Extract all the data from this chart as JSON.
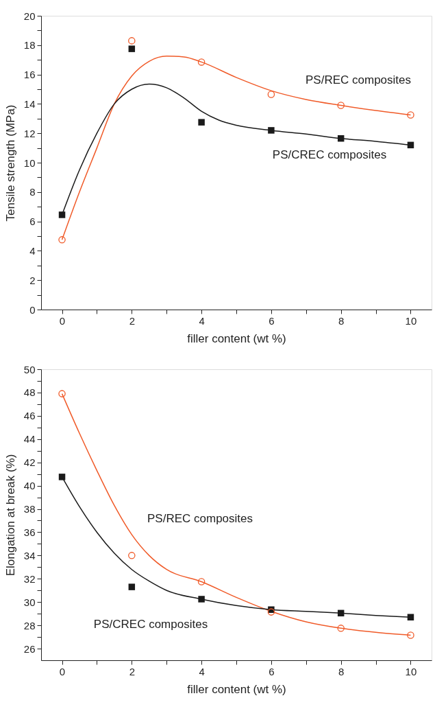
{
  "chart_data": [
    {
      "type": "scatter",
      "xlabel": "filler content (wt %)",
      "ylabel": "Tensile strength (MPa)",
      "xlim": [
        -0.6,
        10.6
      ],
      "ylim": [
        0,
        20
      ],
      "xticks": [
        0,
        {
          "value": 1,
          "label": null
        },
        2,
        {
          "value": 3,
          "label": null
        },
        4,
        {
          "value": 5,
          "label": null
        },
        6,
        {
          "value": 7,
          "label": null
        },
        8,
        {
          "value": 9,
          "label": null
        },
        10
      ],
      "yticks": [
        0,
        {
          "value": 1,
          "label": null
        },
        2,
        {
          "value": 3,
          "label": null
        },
        4,
        {
          "value": 5,
          "label": null
        },
        6,
        {
          "value": 7,
          "label": null
        },
        8,
        {
          "value": 9,
          "label": null
        },
        10,
        {
          "value": 11,
          "label": null
        },
        12,
        {
          "value": 13,
          "label": null
        },
        14,
        {
          "value": 15,
          "label": null
        },
        16,
        {
          "value": 17,
          "label": null
        },
        18,
        {
          "value": 19,
          "label": null
        },
        20
      ],
      "grid": false,
      "series": [
        {
          "type": "line",
          "color": "#f05a28",
          "x": [
            0,
            0.5,
            1,
            1.5,
            2,
            2.5,
            3,
            3.5,
            4,
            5,
            6,
            7,
            8,
            9,
            10
          ],
          "values": [
            4.75,
            8.0,
            11.0,
            14.0,
            15.9,
            16.9,
            17.25,
            17.2,
            16.85,
            15.8,
            14.9,
            14.3,
            13.9,
            13.55,
            13.25
          ]
        },
        {
          "type": "line",
          "color": "#1a1a1a",
          "x": [
            0,
            0.5,
            1,
            1.5,
            2,
            2.5,
            3,
            3.5,
            4,
            4.5,
            5,
            6,
            7,
            8,
            9,
            10
          ],
          "values": [
            6.45,
            9.5,
            12.0,
            14.0,
            15.0,
            15.35,
            15.1,
            14.4,
            13.5,
            12.9,
            12.55,
            12.2,
            11.95,
            11.65,
            11.45,
            11.2
          ]
        },
        {
          "marker": "circle",
          "color": "#f05a28",
          "x": [
            0,
            2,
            4,
            6,
            8,
            10
          ],
          "values": [
            4.75,
            18.3,
            16.85,
            14.65,
            13.9,
            13.25
          ]
        },
        {
          "marker": "square",
          "color": "#1a1a1a",
          "x": [
            0,
            2,
            4,
            6,
            8,
            10
          ],
          "values": [
            6.45,
            17.75,
            12.75,
            12.2,
            11.65,
            11.2
          ]
        }
      ],
      "annotations": [
        "PS/REC composites",
        "PS/CREC composites"
      ]
    },
    {
      "type": "scatter",
      "xlabel": "filler content (wt %)",
      "ylabel": "Elongation at break (%)",
      "xlim": [
        -0.6,
        10.6
      ],
      "ylim": [
        25,
        50
      ],
      "xticks": [
        0,
        {
          "value": 1,
          "label": null
        },
        2,
        {
          "value": 3,
          "label": null
        },
        4,
        {
          "value": 5,
          "label": null
        },
        6,
        {
          "value": 7,
          "label": null
        },
        8,
        {
          "value": 9,
          "label": null
        },
        10
      ],
      "yticks": [
        26,
        {
          "value": 27,
          "label": null
        },
        28,
        {
          "value": 29,
          "label": null
        },
        30,
        {
          "value": 31,
          "label": null
        },
        32,
        {
          "value": 33,
          "label": null
        },
        34,
        {
          "value": 35,
          "label": null
        },
        36,
        {
          "value": 37,
          "label": null
        },
        38,
        {
          "value": 39,
          "label": null
        },
        40,
        {
          "value": 41,
          "label": null
        },
        42,
        {
          "value": 43,
          "label": null
        },
        44,
        {
          "value": 45,
          "label": null
        },
        46,
        {
          "value": 47,
          "label": null
        },
        48,
        {
          "value": 49,
          "label": null
        },
        50
      ],
      "grid": false,
      "series": [
        {
          "type": "line",
          "color": "#f05a28",
          "x": [
            0,
            0.5,
            1,
            1.5,
            2,
            2.5,
            3,
            4,
            5,
            6,
            7,
            8,
            9,
            10
          ],
          "values": [
            47.9,
            44.5,
            41.3,
            38.3,
            35.8,
            34.0,
            32.8,
            31.75,
            30.4,
            29.2,
            28.3,
            27.75,
            27.4,
            27.15
          ]
        },
        {
          "type": "line",
          "color": "#1a1a1a",
          "x": [
            0,
            0.5,
            1,
            1.5,
            2,
            2.5,
            3,
            4,
            5,
            6,
            7,
            8,
            9,
            10
          ],
          "values": [
            40.75,
            38.2,
            36.0,
            34.2,
            32.8,
            31.8,
            31.0,
            30.25,
            29.7,
            29.35,
            29.2,
            29.05,
            28.85,
            28.7
          ]
        },
        {
          "marker": "square",
          "color": "#1a1a1a",
          "x": [
            0,
            2,
            4,
            6,
            8,
            10
          ],
          "values": [
            40.75,
            31.3,
            30.25,
            29.35,
            29.05,
            28.7
          ]
        },
        {
          "marker": "circle",
          "color": "#f05a28",
          "x": [
            0,
            2,
            4,
            6,
            8,
            10
          ],
          "values": [
            47.9,
            34.0,
            31.75,
            29.15,
            27.75,
            27.15
          ]
        }
      ],
      "annotations": [
        "PS/REC composites",
        "PS/CREC composites"
      ]
    }
  ]
}
